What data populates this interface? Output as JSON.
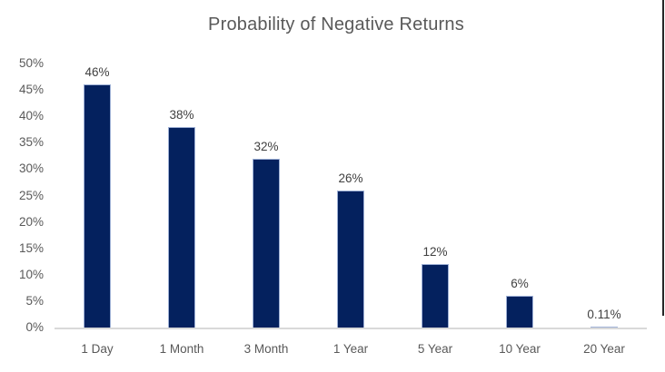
{
  "chart_data": {
    "type": "bar",
    "title": "Probability of Negative Returns",
    "categories": [
      "1 Day",
      "1 Month",
      "3 Month",
      "1 Year",
      "5 Year",
      "10 Year",
      "20 Year"
    ],
    "values": [
      46,
      38,
      32,
      26,
      12,
      6,
      0.11
    ],
    "data_labels": [
      "46%",
      "38%",
      "32%",
      "26%",
      "12%",
      "6%",
      "0.11%"
    ],
    "xlabel": "",
    "ylabel": "",
    "ylim": [
      0,
      50
    ],
    "y_tick_values": [
      0,
      5,
      10,
      15,
      20,
      25,
      30,
      35,
      40,
      45,
      50
    ],
    "y_tick_labels": [
      "0%",
      "5%",
      "10%",
      "15%",
      "20%",
      "25%",
      "30%",
      "35%",
      "40%",
      "45%",
      "50%"
    ],
    "grid": false,
    "legend": false,
    "colors": {
      "bar_fill": "#04215E",
      "bar_border": "#9FB1D6",
      "title_text": "#595959",
      "tick_text": "#595959",
      "data_label_text": "#404040",
      "axis_line": "#D9D9D9",
      "screen_edge_line": "#262626"
    }
  }
}
